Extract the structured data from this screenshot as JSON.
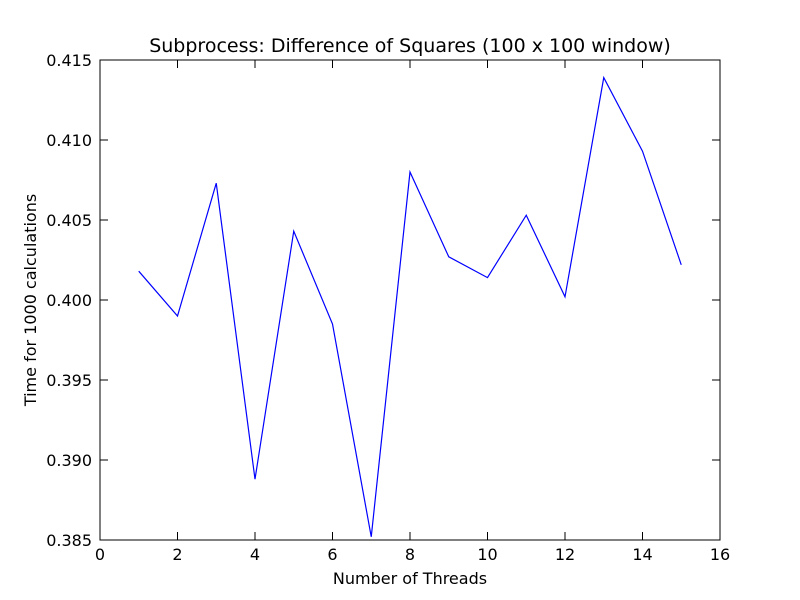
{
  "chart_data": {
    "type": "line",
    "title": "Subprocess: Difference of Squares (100 x 100 window)",
    "xlabel": "Number of Threads",
    "ylabel": "Time for 1000 calculations",
    "xlim": [
      0,
      16
    ],
    "ylim": [
      0.385,
      0.415
    ],
    "xticks": [
      0,
      2,
      4,
      6,
      8,
      10,
      12,
      14,
      16
    ],
    "xtick_labels": [
      "0",
      "2",
      "4",
      "6",
      "8",
      "10",
      "12",
      "14",
      "16"
    ],
    "yticks": [
      0.385,
      0.39,
      0.395,
      0.4,
      0.405,
      0.41,
      0.415
    ],
    "ytick_labels": [
      "0.385",
      "0.390",
      "0.395",
      "0.400",
      "0.405",
      "0.410",
      "0.415"
    ],
    "grid": false,
    "legend": false,
    "series": [
      {
        "color": "#0000ff",
        "x": [
          1,
          2,
          3,
          4,
          5,
          6,
          7,
          8,
          9,
          10,
          11,
          12,
          13,
          14,
          15
        ],
        "y": [
          0.4018,
          0.399,
          0.4073,
          0.3888,
          0.4043,
          0.3985,
          0.3852,
          0.408,
          0.4027,
          0.4014,
          0.4053,
          0.4002,
          0.4139,
          0.4093,
          0.4022
        ]
      }
    ]
  }
}
